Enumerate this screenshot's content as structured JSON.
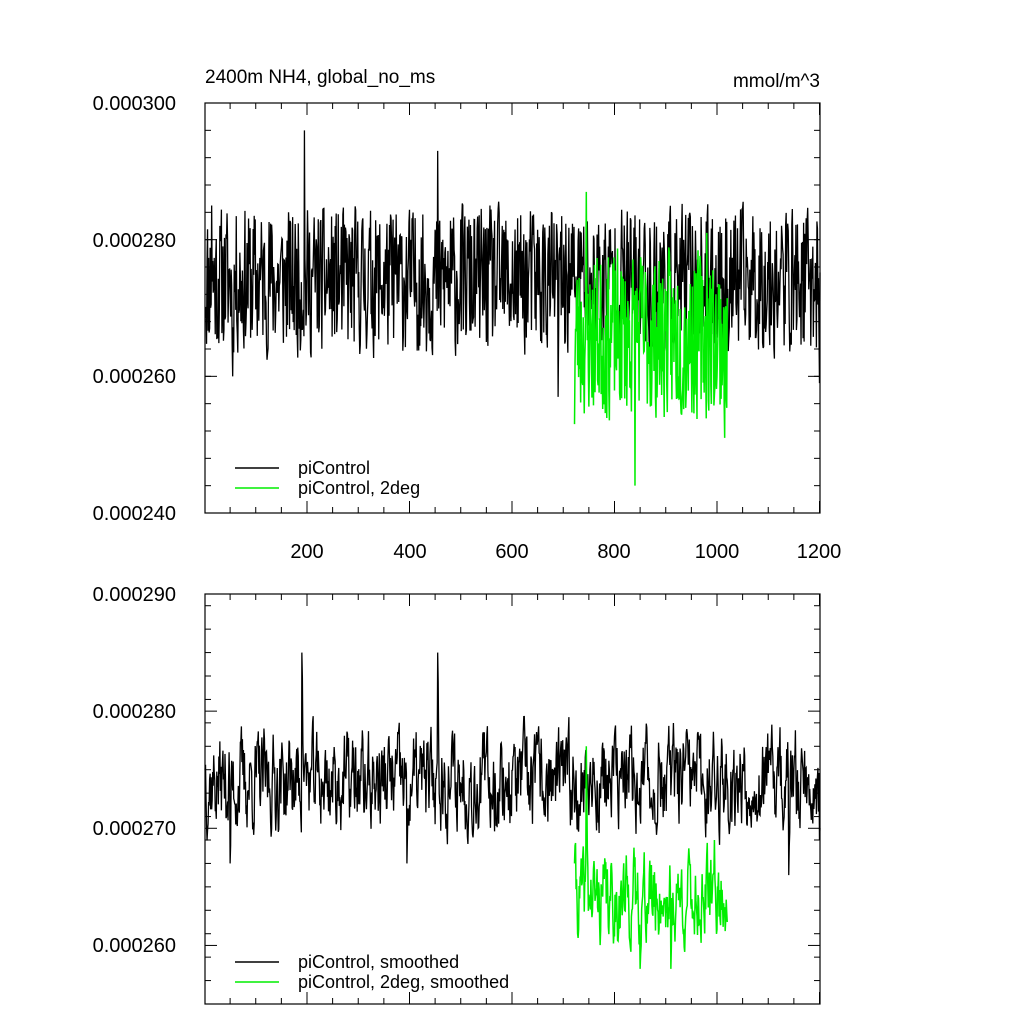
{
  "chart_data": [
    {
      "type": "line",
      "title_left": "2400m NH4, global_no_ms",
      "title_right": "mmol/m^3",
      "xlim": [
        1,
        1201
      ],
      "ylim": [
        0.00024,
        0.0003
      ],
      "x_ticks": [
        200,
        400,
        600,
        800,
        1000,
        1200
      ],
      "x_tick_labels": [
        "200",
        "400",
        "600",
        "800",
        "1000",
        "1200"
      ],
      "y_ticks": [
        0.00024,
        0.00026,
        0.00028,
        0.0003
      ],
      "y_tick_labels": [
        "0.000240",
        "0.000260",
        "0.000280",
        "0.000300"
      ],
      "legend": {
        "placement": "bottom-left",
        "entries": [
          "piControl",
          "piControl, 2deg"
        ]
      },
      "series": [
        {
          "name": "piControl",
          "color": "#000000",
          "x_start": 1,
          "x_end": 1201,
          "mean": 0.000274,
          "amplitude": 7.5e-06,
          "smooth": 0.15,
          "seed": 11,
          "anchors": [
            [
              14,
              0.000285
            ],
            [
              55,
              0.00026
            ],
            [
              195,
              0.000296
            ],
            [
              455,
              0.000293
            ],
            [
              690,
              0.000257
            ],
            [
              1200,
              0.000259
            ]
          ]
        },
        {
          "name": "piControl, 2deg",
          "color": "#00ee00",
          "x_start": 722,
          "x_end": 1020,
          "mean": 0.000266,
          "amplitude": 8.5e-06,
          "smooth": 0.15,
          "seed": 23,
          "anchors": [
            [
              722,
              0.000253
            ],
            [
              745,
              0.000287
            ],
            [
              840,
              0.000244
            ],
            [
              980,
              0.000281
            ],
            [
              1015,
              0.000251
            ]
          ]
        }
      ]
    },
    {
      "type": "line",
      "xlim": [
        1,
        1201
      ],
      "ylim": [
        0.000255,
        0.00029
      ],
      "x_ticks": [
        200,
        400,
        600,
        800,
        1000,
        1200
      ],
      "y_ticks": [
        0.00026,
        0.00027,
        0.00028,
        0.00029
      ],
      "y_tick_labels": [
        "0.000260",
        "0.000270",
        "0.000280",
        "0.000290"
      ],
      "legend": {
        "placement": "bottom-left",
        "entries": [
          "piControl, smoothed",
          "piControl, 2deg, smoothed"
        ]
      },
      "series": [
        {
          "name": "piControl, smoothed",
          "color": "#000000",
          "x_start": 1,
          "x_end": 1201,
          "mean": 0.000274,
          "amplitude": 4.5e-06,
          "smooth": 0.55,
          "seed": 37,
          "anchors": [
            [
              1,
              0.000275
            ],
            [
              50,
              0.000267
            ],
            [
              190,
              0.000285
            ],
            [
              395,
              0.000267
            ],
            [
              455,
              0.000285
            ],
            [
              1140,
              0.000266
            ],
            [
              1200,
              0.000269
            ]
          ]
        },
        {
          "name": "piControl, 2deg, smoothed",
          "color": "#00ee00",
          "x_start": 722,
          "x_end": 1020,
          "mean": 0.000264,
          "amplitude": 4e-06,
          "smooth": 0.55,
          "seed": 41,
          "anchors": [
            [
              722,
              0.000267
            ],
            [
              745,
              0.000277
            ],
            [
              790,
              0.000263
            ],
            [
              850,
              0.000258
            ],
            [
              910,
              0.000258
            ],
            [
              995,
              0.000269
            ],
            [
              1020,
              0.000262
            ]
          ]
        }
      ]
    }
  ]
}
